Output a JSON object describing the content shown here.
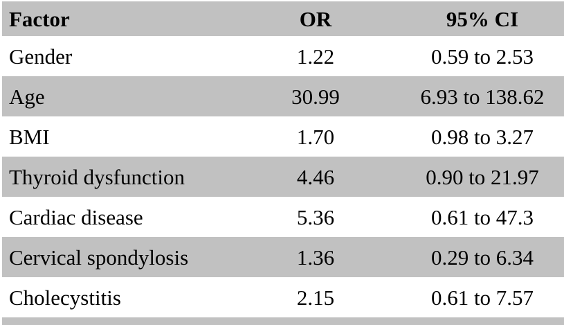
{
  "chart_data": {
    "type": "table",
    "title": "",
    "columns": [
      "Factor",
      "OR",
      "95% CI"
    ],
    "rows": [
      {
        "factor": "Gender",
        "or": "1.22",
        "ci": "0.59 to 2.53"
      },
      {
        "factor": "Age",
        "or": "30.99",
        "ci": "6.93 to 138.62"
      },
      {
        "factor": "BMI",
        "or": "1.70",
        "ci": "0.98 to 3.27"
      },
      {
        "factor": "Thyroid dysfunction",
        "or": "4.46",
        "ci": "0.90 to 21.97"
      },
      {
        "factor": "Cardiac disease",
        "or": "5.36",
        "ci": "0.61 to 47.3"
      },
      {
        "factor": "Cervical spondylosis",
        "or": "1.36",
        "ci": "0.29 to 6.34"
      },
      {
        "factor": "Cholecystitis",
        "or": "2.15",
        "ci": "0.61 to 7.57"
      }
    ],
    "layout": {
      "striped": true,
      "stripe_color": "#c1c1c1",
      "header_bg": "#c1c1c1",
      "row_bg": "#ffffff",
      "text_color": "#000000",
      "legend_position": "none",
      "grid": false
    }
  }
}
